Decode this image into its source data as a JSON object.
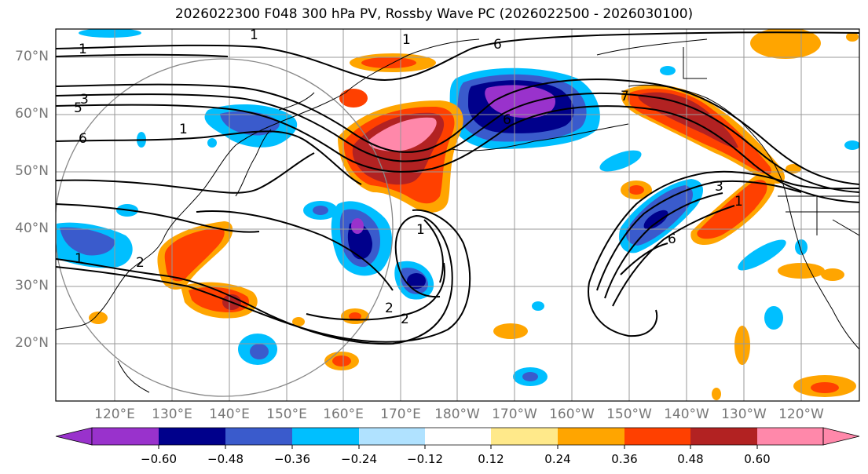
{
  "title": "2026022300 F048 300 hPa PV, Rossby Wave PC (2026022500 - 2026030100)",
  "lat_labels": [
    "70°N",
    "60°N",
    "50°N",
    "40°N",
    "30°N",
    "20°N"
  ],
  "lon_labels": [
    "120°E",
    "130°E",
    "140°E",
    "150°E",
    "160°E",
    "170°E",
    "180°W",
    "170°W",
    "160°W",
    "150°W",
    "140°W",
    "130°W",
    "120°W"
  ],
  "colorbar": {
    "ticks": [
      "−0.60",
      "−0.48",
      "−0.36",
      "−0.24",
      "−0.12",
      "0.12",
      "0.24",
      "0.36",
      "0.48",
      "0.60"
    ],
    "colors": [
      "#9932CC",
      "#00008B",
      "#3A5BCC",
      "#00BFFF",
      "#B0E2FF",
      "#FFFFFF",
      "#FFE98A",
      "#FFA500",
      "#FF4000",
      "#B22222",
      "#FF88AA"
    ]
  },
  "contour_labels": [
    "1",
    "1",
    "5",
    "3",
    "6",
    "6",
    "1",
    "2",
    "1",
    "2",
    "2",
    "6",
    "7",
    "1",
    "3",
    "6",
    "1",
    "1"
  ]
}
